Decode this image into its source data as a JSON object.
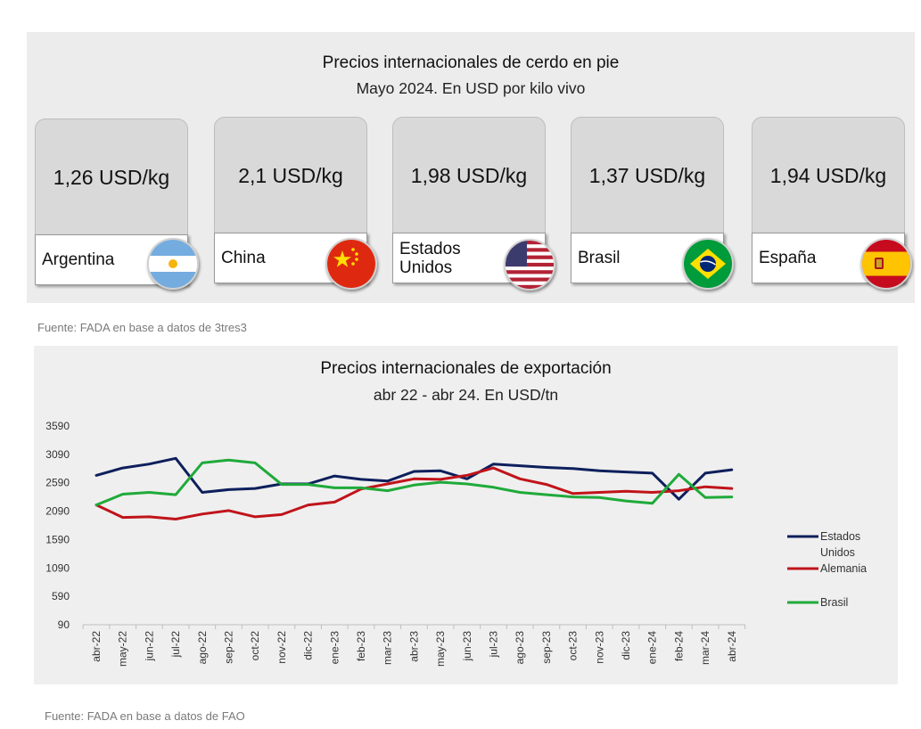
{
  "cards_panel": {
    "title": "Precios internacionales de cerdo en pie",
    "subtitle": "Mayo 2024. En USD por kilo vivo",
    "cards": [
      {
        "value": "1,26 USD/kg",
        "country": "Argentina",
        "flag_icon": "argentina-flag-icon"
      },
      {
        "value": "2,1 USD/kg",
        "country": "China",
        "flag_icon": "china-flag-icon"
      },
      {
        "value": "1,98 USD/kg",
        "country": "Estados Unidos",
        "flag_icon": "usa-flag-icon"
      },
      {
        "value": "1,37 USD/kg",
        "country": "Brasil",
        "flag_icon": "brazil-flag-icon"
      },
      {
        "value": "1,94 USD/kg",
        "country": "España",
        "flag_icon": "spain-flag-icon"
      }
    ],
    "source": "Fuente: FADA en base a datos de 3tres3"
  },
  "chart_panel": {
    "source": "Fuente: FADA en base a datos de FAO"
  },
  "chart_data": {
    "type": "line",
    "title": "Precios internacionales de exportación",
    "subtitle": "abr 22 - abr 24. En USD/tn",
    "xlabel": "",
    "ylabel": "",
    "ylim": [
      90,
      3590
    ],
    "yticks": [
      90,
      590,
      1090,
      1590,
      2090,
      2590,
      3090,
      3590
    ],
    "grid": false,
    "legend_position": "right",
    "categories": [
      "abr-22",
      "may-22",
      "jun-22",
      "jul-22",
      "ago-22",
      "sep-22",
      "oct-22",
      "nov-22",
      "dic-22",
      "ene-23",
      "feb-23",
      "mar-23",
      "abr-23",
      "may-23",
      "jun-23",
      "jul-23",
      "ago-23",
      "sep-23",
      "oct-23",
      "nov-23",
      "dic-23",
      "ene-24",
      "feb-24",
      "mar-24",
      "abr-24"
    ],
    "series": [
      {
        "name": "Estados Unidos",
        "color": "#0d1f5c",
        "values": [
          2720,
          2850,
          2920,
          3020,
          2420,
          2470,
          2490,
          2570,
          2570,
          2710,
          2650,
          2620,
          2790,
          2800,
          2660,
          2920,
          2890,
          2860,
          2840,
          2800,
          2780,
          2760,
          2300,
          2760,
          2820
        ]
      },
      {
        "name": "Alemania",
        "color": "#c0141a",
        "values": [
          2200,
          1980,
          1990,
          1950,
          2040,
          2100,
          1990,
          2030,
          2200,
          2250,
          2480,
          2570,
          2660,
          2650,
          2720,
          2850,
          2660,
          2560,
          2400,
          2420,
          2440,
          2420,
          2450,
          2520,
          2490
        ]
      },
      {
        "name": "Brasil",
        "color": "#1faa3a",
        "values": [
          2200,
          2390,
          2420,
          2380,
          2940,
          2990,
          2940,
          2560,
          2560,
          2500,
          2500,
          2450,
          2550,
          2600,
          2570,
          2510,
          2420,
          2380,
          2340,
          2330,
          2270,
          2230,
          2740,
          2330,
          2340
        ]
      }
    ]
  }
}
